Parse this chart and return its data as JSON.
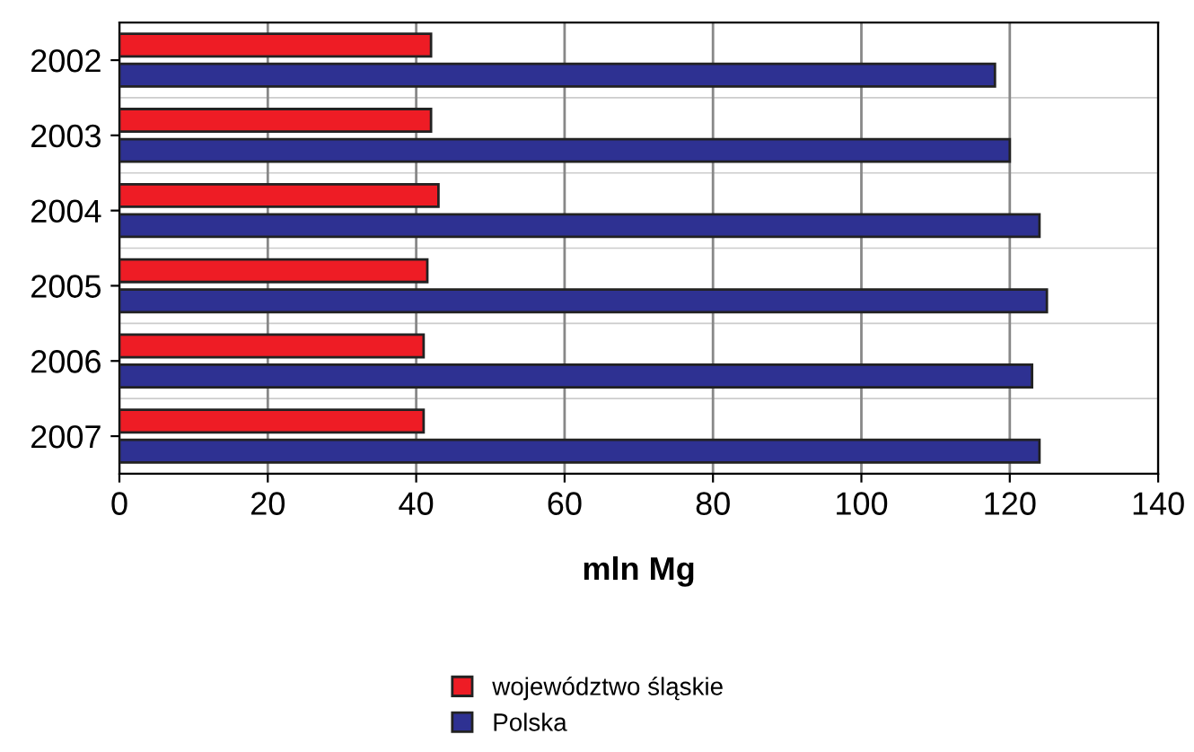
{
  "chart_data": {
    "type": "bar",
    "orientation": "horizontal",
    "xlabel": "mln Mg",
    "categories": [
      "2002",
      "2003",
      "2004",
      "2005",
      "2006",
      "2007"
    ],
    "series": [
      {
        "name": "województwo śląskie",
        "color": "#ee1c25",
        "values": [
          42,
          42,
          43,
          41.5,
          41,
          41
        ]
      },
      {
        "name": "Polska",
        "color": "#2e3192",
        "values": [
          118,
          120,
          124,
          125,
          123,
          124
        ]
      }
    ],
    "xlim": [
      0,
      140
    ],
    "xticks": [
      0,
      20,
      40,
      60,
      80,
      100,
      120,
      140
    ],
    "grid": "x",
    "legend": "bottom"
  }
}
